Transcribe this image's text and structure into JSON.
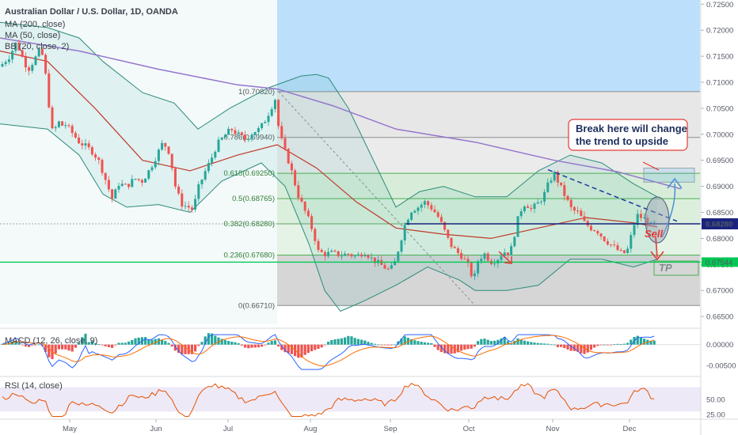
{
  "header": {
    "title": "Australian Dollar / U.S. Dollar, 1D, OANDA",
    "indicators": [
      "MA (200, close)",
      "MA (50, close)",
      "BB (20, close, 2)"
    ]
  },
  "colors": {
    "up": "#26a69a",
    "down": "#ef5350",
    "ma200": "#9575cd",
    "ma50": "#c0392b",
    "bb": "#2e8b7a",
    "bb_fill": "rgba(38,166,154,0.10)",
    "fib_green": "rgba(76,175,80,0.18)",
    "fib_grey": "rgba(120,120,120,0.35)",
    "fib_blue": "rgba(33,150,243,0.30)",
    "rsi_band": "rgba(126,87,194,0.13)",
    "support": "#00c853",
    "resistance": "#1a237e"
  },
  "price_scale": {
    "ticks": [
      "0.72500",
      "0.72000",
      "0.71500",
      "0.71000",
      "0.70500",
      "0.70000",
      "0.69500",
      "0.69000",
      "0.68500",
      "0.68000",
      "0.67500",
      "0.67000",
      "0.66500"
    ],
    "current_price": "0.68280",
    "support_price": "0.67544"
  },
  "fib_levels": [
    {
      "label": "1(0.70820)",
      "value": 0.7082
    },
    {
      "label": "0.786(0.69940)",
      "value": 0.6994
    },
    {
      "label": "0.618(0.69250)",
      "value": 0.6925
    },
    {
      "label": "0.5(0.68765)",
      "value": 0.68765
    },
    {
      "label": "0.382(0.68280)",
      "value": 0.6828
    },
    {
      "label": "0.236(0.67680)",
      "value": 0.6768
    },
    {
      "label": "0(0.66710)",
      "value": 0.6671
    }
  ],
  "annotations": {
    "note_line1": "Break here will change",
    "note_line2": "the trend to upside",
    "sell": "Sell",
    "tp": "TP"
  },
  "macd": {
    "label": "MACD (12, 26, close, 9)",
    "ticks": [
      "0.00000",
      "-0.00500"
    ]
  },
  "rsi": {
    "label": "RSI (14, close)",
    "ticks": [
      "50.00",
      "25.00"
    ]
  },
  "x_axis": {
    "months": [
      "May",
      "Jun",
      "Jul",
      "Aug",
      "Sep",
      "Oct",
      "Nov",
      "Dec"
    ]
  },
  "chart_data": {
    "type": "candlestick",
    "title": "Australian Dollar / U.S. Dollar, 1D, OANDA",
    "y_range": [
      0.6635,
      0.7258
    ],
    "close_path": [
      [
        0,
        0.713
      ],
      [
        12,
        0.715
      ],
      [
        20,
        0.7175
      ],
      [
        25,
        0.7162
      ],
      [
        30,
        0.714
      ],
      [
        36,
        0.7125
      ],
      [
        44,
        0.7145
      ],
      [
        52,
        0.7165
      ],
      [
        58,
        0.711
      ],
      [
        63,
        0.704
      ],
      [
        68,
        0.6985
      ],
      [
        72,
        0.7035
      ],
      [
        76,
        0.7015
      ],
      [
        82,
        0.702
      ],
      [
        90,
        0.7005
      ],
      [
        100,
        0.6985
      ],
      [
        110,
        0.6975
      ],
      [
        118,
        0.6965
      ],
      [
        126,
        0.6945
      ],
      [
        135,
        0.6905
      ],
      [
        142,
        0.6875
      ],
      [
        150,
        0.6905
      ],
      [
        160,
        0.69
      ],
      [
        170,
        0.6915
      ],
      [
        180,
        0.691
      ],
      [
        190,
        0.6935
      ],
      [
        198,
        0.696
      ],
      [
        206,
        0.6985
      ],
      [
        214,
        0.6965
      ],
      [
        222,
        0.6895
      ],
      [
        230,
        0.6865
      ],
      [
        238,
        0.686
      ],
      [
        244,
        0.6855
      ],
      [
        250,
        0.6895
      ],
      [
        258,
        0.6925
      ],
      [
        266,
        0.695
      ],
      [
        274,
        0.698
      ],
      [
        282,
        0.6995
      ],
      [
        292,
        0.701
      ],
      [
        300,
        0.7
      ],
      [
        310,
        0.699
      ],
      [
        320,
        0.7005
      ],
      [
        328,
        0.701
      ],
      [
        336,
        0.703
      ],
      [
        342,
        0.705
      ],
      [
        348,
        0.707
      ],
      [
        352,
        0.701
      ],
      [
        358,
        0.6975
      ],
      [
        364,
        0.695
      ],
      [
        370,
        0.692
      ],
      [
        376,
        0.6885
      ],
      [
        383,
        0.686
      ],
      [
        390,
        0.6835
      ],
      [
        396,
        0.681
      ],
      [
        402,
        0.6775
      ],
      [
        410,
        0.677
      ],
      [
        420,
        0.6772
      ],
      [
        430,
        0.6768
      ],
      [
        440,
        0.677
      ],
      [
        450,
        0.6765
      ],
      [
        460,
        0.6775
      ],
      [
        470,
        0.676
      ],
      [
        480,
        0.675
      ],
      [
        490,
        0.674
      ],
      [
        497,
        0.6745
      ],
      [
        505,
        0.679
      ],
      [
        512,
        0.683
      ],
      [
        520,
        0.6855
      ],
      [
        528,
        0.686
      ],
      [
        536,
        0.687
      ],
      [
        544,
        0.686
      ],
      [
        552,
        0.6845
      ],
      [
        560,
        0.682
      ],
      [
        568,
        0.679
      ],
      [
        576,
        0.6775
      ],
      [
        584,
        0.6765
      ],
      [
        592,
        0.6745
      ],
      [
        598,
        0.6718
      ],
      [
        604,
        0.676
      ],
      [
        612,
        0.677
      ],
      [
        620,
        0.6755
      ],
      [
        628,
        0.676
      ],
      [
        636,
        0.6775
      ],
      [
        644,
        0.677
      ],
      [
        650,
        0.681
      ],
      [
        656,
        0.685
      ],
      [
        664,
        0.687
      ],
      [
        670,
        0.6855
      ],
      [
        678,
        0.6865
      ],
      [
        686,
        0.688
      ],
      [
        694,
        0.691
      ],
      [
        700,
        0.6925
      ],
      [
        706,
        0.6905
      ],
      [
        714,
        0.688
      ],
      [
        722,
        0.6855
      ],
      [
        730,
        0.685
      ],
      [
        738,
        0.683
      ],
      [
        746,
        0.682
      ],
      [
        754,
        0.6815
      ],
      [
        762,
        0.68
      ],
      [
        770,
        0.679
      ],
      [
        778,
        0.678
      ],
      [
        786,
        0.677
      ],
      [
        792,
        0.6775
      ],
      [
        798,
        0.681
      ],
      [
        804,
        0.6845
      ],
      [
        810,
        0.684
      ],
      [
        816,
        0.6835
      ],
      [
        822,
        0.6825
      ],
      [
        828,
        0.683
      ]
    ],
    "ma200_path": [
      [
        0,
        0.7185
      ],
      [
        100,
        0.716
      ],
      [
        200,
        0.7125
      ],
      [
        300,
        0.7095
      ],
      [
        350,
        0.7087
      ],
      [
        420,
        0.7055
      ],
      [
        500,
        0.701
      ],
      [
        600,
        0.6985
      ],
      [
        700,
        0.695
      ],
      [
        780,
        0.6928
      ],
      [
        860,
        0.6895
      ]
    ],
    "ma50_path": [
      [
        0,
        0.716
      ],
      [
        60,
        0.714
      ],
      [
        120,
        0.705
      ],
      [
        180,
        0.695
      ],
      [
        240,
        0.693
      ],
      [
        300,
        0.696
      ],
      [
        350,
        0.698
      ],
      [
        400,
        0.6935
      ],
      [
        450,
        0.687
      ],
      [
        500,
        0.682
      ],
      [
        560,
        0.6808
      ],
      [
        620,
        0.68
      ],
      [
        680,
        0.682
      ],
      [
        740,
        0.684
      ],
      [
        800,
        0.683
      ],
      [
        830,
        0.6822
      ]
    ],
    "bb_upper_path": [
      [
        0,
        0.7215
      ],
      [
        60,
        0.7205
      ],
      [
        100,
        0.7185
      ],
      [
        130,
        0.714
      ],
      [
        180,
        0.708
      ],
      [
        220,
        0.706
      ],
      [
        250,
        0.701
      ],
      [
        290,
        0.705
      ],
      [
        340,
        0.709
      ],
      [
        380,
        0.7112
      ],
      [
        400,
        0.7115
      ],
      [
        415,
        0.7108
      ],
      [
        440,
        0.705
      ],
      [
        470,
        0.6955
      ],
      [
        500,
        0.686
      ],
      [
        530,
        0.689
      ],
      [
        560,
        0.69
      ],
      [
        600,
        0.688
      ],
      [
        640,
        0.688
      ],
      [
        680,
        0.693
      ],
      [
        720,
        0.696
      ],
      [
        760,
        0.6945
      ],
      [
        800,
        0.6905
      ],
      [
        830,
        0.688
      ]
    ],
    "bb_lower_path": [
      [
        0,
        0.702
      ],
      [
        60,
        0.701
      ],
      [
        100,
        0.696
      ],
      [
        130,
        0.6885
      ],
      [
        160,
        0.686
      ],
      [
        200,
        0.6865
      ],
      [
        240,
        0.685
      ],
      [
        280,
        0.691
      ],
      [
        330,
        0.6945
      ],
      [
        360,
        0.69
      ],
      [
        390,
        0.679
      ],
      [
        410,
        0.67
      ],
      [
        430,
        0.666
      ],
      [
        460,
        0.668
      ],
      [
        500,
        0.671
      ],
      [
        540,
        0.6745
      ],
      [
        580,
        0.672
      ],
      [
        600,
        0.67
      ],
      [
        640,
        0.67
      ],
      [
        680,
        0.671
      ],
      [
        720,
        0.676
      ],
      [
        760,
        0.676
      ],
      [
        800,
        0.6745
      ],
      [
        830,
        0.676
      ]
    ],
    "macd_range": [
      -0.0075,
      0.003
    ],
    "rsi_range": [
      20,
      85
    ],
    "x_months": [
      "May",
      "Jun",
      "Jul",
      "Aug",
      "Sep",
      "Oct",
      "Nov",
      "Dec"
    ]
  }
}
